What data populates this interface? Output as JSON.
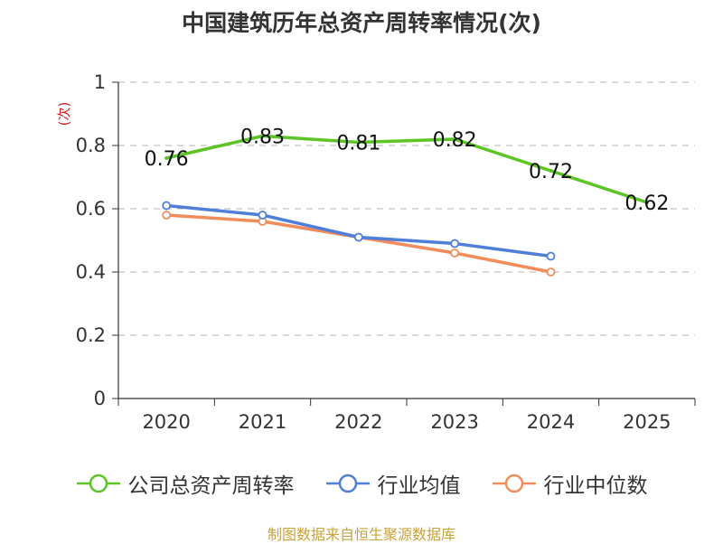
{
  "chart_data": {
    "type": "line",
    "title": "中国建筑历年总资产周转率情况(次)",
    "ylabel": "(次)",
    "categories": [
      "2020",
      "2021",
      "2022",
      "2023",
      "2024",
      "2025"
    ],
    "ylim": [
      0,
      1
    ],
    "yticks": [
      0,
      0.2,
      0.4,
      0.6,
      0.8,
      1
    ],
    "ytick_labels": [
      "0",
      "0.2",
      "0.4",
      "0.6",
      "0.8",
      "1"
    ],
    "grid": true,
    "series": [
      {
        "name": "公司总资产周转率",
        "color": "#5cc424",
        "values": [
          0.76,
          0.83,
          0.81,
          0.82,
          0.72,
          0.62
        ],
        "labels": [
          "0.76",
          "0.83",
          "0.81",
          "0.82",
          "0.72",
          "0.62"
        ]
      },
      {
        "name": "行业均值",
        "color": "#4f7fd9",
        "values": [
          0.61,
          0.58,
          0.51,
          0.49,
          0.45,
          null
        ]
      },
      {
        "name": "行业中位数",
        "color": "#f28c5a",
        "values": [
          0.58,
          0.56,
          0.51,
          0.46,
          0.4,
          null
        ]
      }
    ]
  },
  "source": "制图数据来自恒生聚源数据库"
}
